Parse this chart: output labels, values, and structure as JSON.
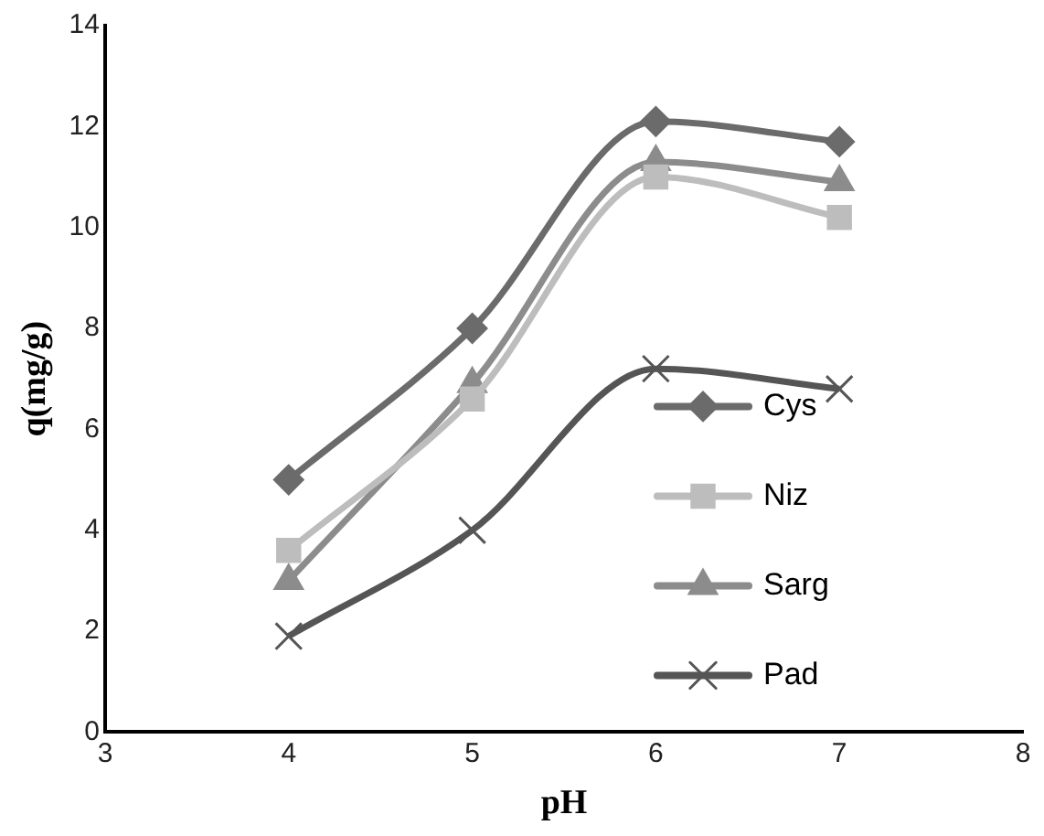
{
  "chart_data": {
    "type": "line",
    "xlabel": "pH",
    "ylabel": "q(mg/g)",
    "x": [
      4,
      5,
      6,
      7
    ],
    "xlim": [
      3,
      8
    ],
    "xticks": [
      3,
      4,
      5,
      6,
      7,
      8
    ],
    "ylim": [
      0,
      14
    ],
    "yticks": [
      0,
      2,
      4,
      6,
      8,
      10,
      12,
      14
    ],
    "grid": false,
    "legend": "bottom right",
    "series": [
      {
        "name": "Cys",
        "color": "#6b6b6b",
        "marker": "diamond",
        "values": [
          5.0,
          8.0,
          12.1,
          11.7
        ]
      },
      {
        "name": "Niz",
        "color": "#bdbdbd",
        "marker": "square",
        "values": [
          3.6,
          6.6,
          11.0,
          10.2
        ]
      },
      {
        "name": "Sarg",
        "color": "#8c8c8c",
        "marker": "triangle",
        "values": [
          3.0,
          6.9,
          11.3,
          10.9
        ]
      },
      {
        "name": "Pad",
        "color": "#555555",
        "marker": "cross",
        "values": [
          1.9,
          4.0,
          7.2,
          6.8
        ]
      }
    ]
  }
}
